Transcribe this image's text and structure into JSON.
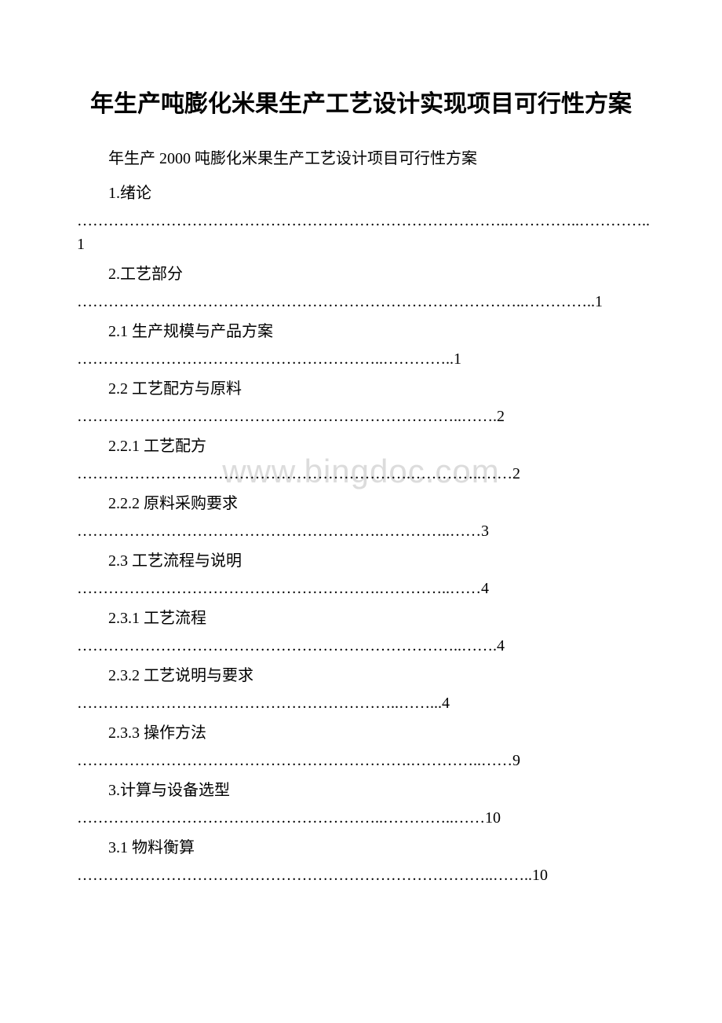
{
  "document": {
    "title": "年生产吨膨化米果生产工艺设计实现项目可行性方案",
    "subtitle": "年生产 2000 吨膨化米果生产工艺设计项目可行性方案",
    "watermark_text": "www.bingdoc.com",
    "text_color": "#000000",
    "background_color": "#ffffff",
    "watermark_color": "#dcdcdc",
    "title_fontsize": 30,
    "body_fontsize": 20
  },
  "toc": [
    {
      "label": "1.绪论",
      "dots": "………………………………………………………………………..…………..…………..1"
    },
    {
      "label": "2.工艺部分",
      "dots": "…………………………………………………………………………..…………..1"
    },
    {
      "label": "2.1 生产规模与产品方案",
      "dots": "…………………………………………………..…………..1"
    },
    {
      "label": "2.2 工艺配方与原料",
      "dots": "………………………………………………………………..…….2"
    },
    {
      "label": "2.2.1 工艺配方",
      "dots": "……………………………………………………….…………..……2"
    },
    {
      "label": "2.2.2 原料采购要求",
      "dots": "………………………………………………….…………..……3"
    },
    {
      "label": "2.3 工艺流程与说明",
      "dots": "………………………………………………….…………..……4"
    },
    {
      "label": "2.3.1 工艺流程",
      "dots": "………………………………………………………………..…….4"
    },
    {
      "label": "2.3.2 工艺说明与要求",
      "dots": "……………………………………………………..……...4"
    },
    {
      "label": "2.3.3 操作方法",
      "dots": "……………………………………………………….…………..……9"
    },
    {
      "label": "3.计算与设备选型",
      "dots": "…………………………………………………..…………..……10"
    },
    {
      "label": "3.1 物料衡算",
      "dots": "……………………………………………………………………..……..10"
    }
  ]
}
